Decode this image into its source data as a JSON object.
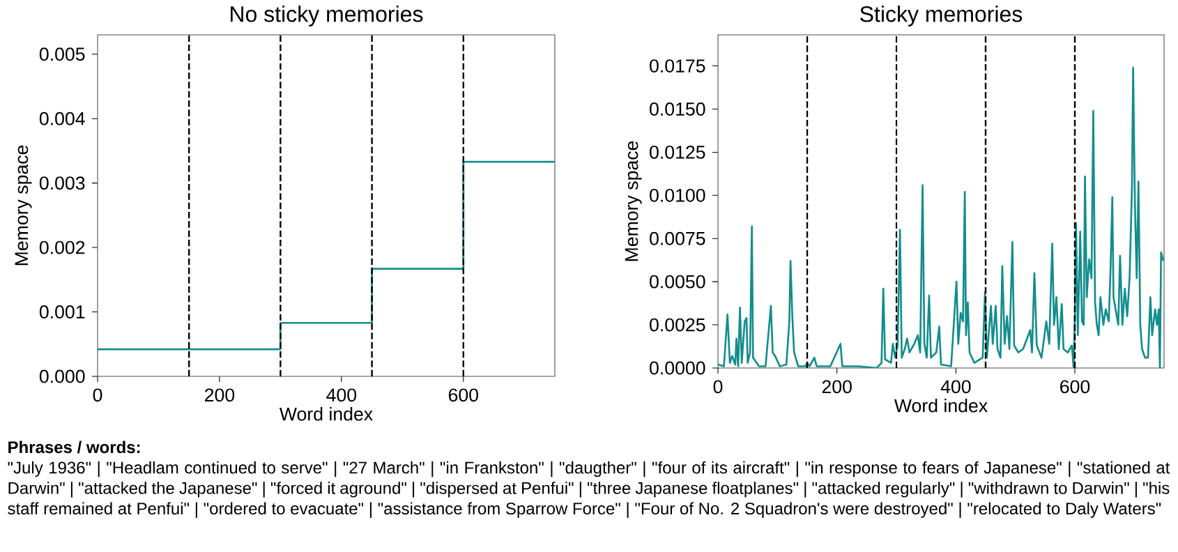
{
  "chart_data": [
    {
      "type": "step",
      "title": "No sticky memories",
      "xlabel": "Word index",
      "ylabel": "Memory space",
      "xlim": [
        0,
        750
      ],
      "ylim": [
        0,
        0.0053
      ],
      "xticks": [
        0,
        200,
        400,
        600
      ],
      "yticks": [
        {
          "value": 0,
          "label": "0.000"
        },
        {
          "value": 0.001,
          "label": "0.001"
        },
        {
          "value": 0.002,
          "label": "0.002"
        },
        {
          "value": 0.003,
          "label": "0.003"
        },
        {
          "value": 0.004,
          "label": "0.004"
        },
        {
          "value": 0.005,
          "label": "0.005"
        }
      ],
      "series": [
        {
          "color": "#138d8d",
          "x": [
            0,
            300,
            450,
            600,
            750
          ],
          "values": [
            0.00042,
            0.00083,
            0.00167,
            0.00333,
            0.00333
          ]
        }
      ],
      "ref_lines": [
        {
          "axis": "x",
          "value": 150,
          "color": "#000000",
          "line_style": "dashed"
        },
        {
          "axis": "x",
          "value": 300,
          "color": "#000000",
          "line_style": "dashed"
        },
        {
          "axis": "x",
          "value": 450,
          "color": "#000000",
          "line_style": "dashed"
        },
        {
          "axis": "x",
          "value": 600,
          "color": "#000000",
          "line_style": "dashed"
        }
      ]
    },
    {
      "type": "line",
      "title": "Sticky memories",
      "xlabel": "Word index",
      "ylabel": "Memory space",
      "xlim": [
        0,
        750
      ],
      "ylim": [
        0,
        0.0193
      ],
      "xticks": [
        0,
        200,
        400,
        600
      ],
      "yticks": [
        {
          "value": 0,
          "label": "0.0000"
        },
        {
          "value": 0.0025,
          "label": "0.0025"
        },
        {
          "value": 0.005,
          "label": "0.0050"
        },
        {
          "value": 0.0075,
          "label": "0.0075"
        },
        {
          "value": 0.01,
          "label": "0.0100"
        },
        {
          "value": 0.0125,
          "label": "0.0125"
        },
        {
          "value": 0.015,
          "label": "0.0150"
        },
        {
          "value": 0.0175,
          "label": "0.0175"
        }
      ],
      "series": [
        {
          "color": "#138d8d",
          "x": [
            0,
            10,
            16,
            20,
            24,
            29,
            31,
            34,
            37,
            40,
            42,
            45,
            48,
            50,
            54,
            57,
            59,
            69,
            80,
            89,
            92,
            96,
            104,
            115,
            120,
            122,
            125,
            128,
            135,
            147,
            150,
            154,
            162,
            166,
            189,
            206,
            209,
            236,
            267,
            275,
            278,
            281,
            291,
            294,
            298,
            302,
            306,
            309,
            314,
            318,
            322,
            330,
            336,
            340,
            344,
            347,
            351,
            355,
            358,
            367,
            372,
            375,
            392,
            401,
            404,
            408,
            412,
            415,
            417,
            420,
            423,
            431,
            445,
            449,
            452,
            459,
            462,
            467,
            470,
            475,
            478,
            482,
            486,
            490,
            495,
            498,
            505,
            513,
            525,
            528,
            532,
            536,
            544,
            552,
            557,
            562,
            565,
            569,
            573,
            578,
            581,
            588,
            595,
            598,
            600,
            602,
            605,
            609,
            612,
            615,
            617,
            620,
            624,
            628,
            631,
            634,
            637,
            640,
            643,
            648,
            652,
            657,
            660,
            663,
            665,
            669,
            673,
            676,
            680,
            684,
            688,
            692,
            696,
            698,
            701,
            704,
            707,
            710,
            713,
            718,
            723,
            727,
            730,
            735,
            738,
            741,
            743,
            745,
            749
          ],
          "values": [
            0.0002,
            0.0001,
            0.0031,
            0.0003,
            0.0007,
            0.0002,
            0.0017,
            0.0001,
            0.0035,
            0.0003,
            0.0013,
            0.0027,
            0.0029,
            0.0003,
            0.0009,
            0.0082,
            0.0006,
            0.0001,
            0.0001,
            0.0036,
            0.0009,
            0.0007,
            0.0001,
            0.0002,
            0.0027,
            0.0062,
            0.003,
            0.0009,
            0.0001,
            0.0001,
            0.0003,
            0.0001,
            0.0006,
            0.0001,
            0.0001,
            0.0014,
            0.0001,
            0.0001,
            0,
            0.0003,
            0.0046,
            0.0005,
            0.0003,
            0.0014,
            0.0006,
            0.0013,
            0.008,
            0.0006,
            0.0011,
            0.0017,
            0.0009,
            0.0014,
            0.0019,
            0.0009,
            0.0106,
            0.0014,
            0.0006,
            0.0042,
            0.0006,
            0.0009,
            0.0024,
            0.0002,
            0.0001,
            0.005,
            0.0014,
            0.0032,
            0.0027,
            0.0102,
            0.0019,
            0.0038,
            0.0009,
            0.0003,
            0.0006,
            0.0044,
            0.0006,
            0.0036,
            0.0014,
            0.0036,
            0.0011,
            0.0006,
            0.0059,
            0.0014,
            0.003,
            0.0011,
            0.0073,
            0.0013,
            0.0009,
            0.0011,
            0.0022,
            0.0009,
            0.0055,
            0.0013,
            0.0006,
            0.0027,
            0.0014,
            0.0072,
            0.0025,
            0.0041,
            0.0011,
            0.0037,
            0.0011,
            0.0009,
            0.0013,
            0,
            0.003,
            0.0084,
            0.0019,
            0.0079,
            0.0027,
            0.0025,
            0.0111,
            0.0041,
            0.0063,
            0.0052,
            0.0149,
            0.0038,
            0.0025,
            0.0019,
            0.0041,
            0.0025,
            0.0034,
            0.0027,
            0.0057,
            0.0099,
            0.0041,
            0.0033,
            0.0025,
            0.0065,
            0.0025,
            0.0046,
            0.003,
            0.0052,
            0.0104,
            0.0174,
            0.0095,
            0.0052,
            0.0108,
            0.0025,
            0.0011,
            0.0006,
            0.0006,
            0.0041,
            0.0019,
            0.0034,
            0.0025,
            0.0034,
            0,
            0.0067,
            0.0062
          ]
        }
      ],
      "ref_lines": [
        {
          "axis": "x",
          "value": 150,
          "color": "#000000",
          "line_style": "dashed"
        },
        {
          "axis": "x",
          "value": 300,
          "color": "#000000",
          "line_style": "dashed"
        },
        {
          "axis": "x",
          "value": 450,
          "color": "#000000",
          "line_style": "dashed"
        },
        {
          "axis": "x",
          "value": 600,
          "color": "#000000",
          "line_style": "dashed"
        }
      ]
    },
    {
      "type": "other",
      "title": "Phrases / words:",
      "annotations": [
        "\"July 1936\"  |  \"Headlam continued to serve\"  | \"27 March\"  |  \"in Frankston\"  |  \"daugther\"  |  \"four of its aircraft\"  |  \"in response to fears of Japanese\"  |  \"stationed at Darwin\"  |  \"attacked the Japanese\"  |  \"forced it aground\"  |  \"dispersed at Penfui\"  |  \"three Japanese floatplanes\"  |  \"attacked regularly\"  |  \"withdrawn to Darwin\"  |  \"his staff remained at Penfui\"  |  \"ordered to evacuate\"  |  \"assistance from Sparrow Force\"  |  \"Four of No. 2 Squadron's were destroyed\"  |  \"relocated to Daly Waters\""
      ]
    }
  ]
}
